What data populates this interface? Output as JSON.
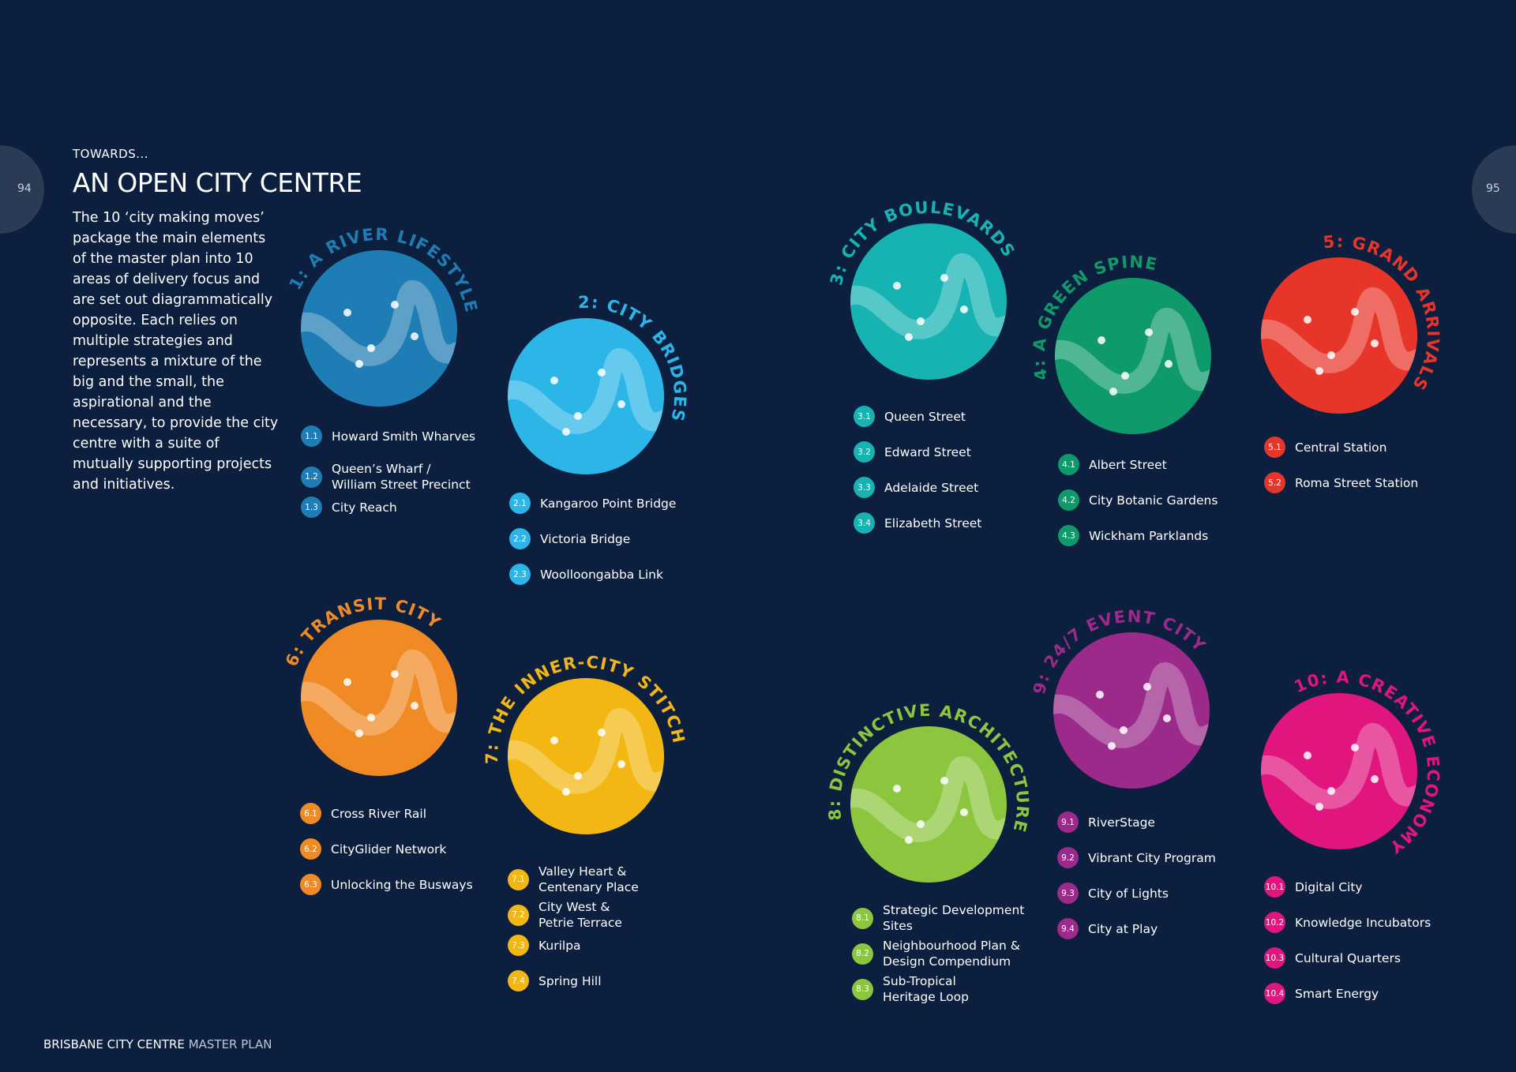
{
  "page_numbers": {
    "left": "94",
    "right": "95"
  },
  "header": {
    "kicker": "TOWARDS...",
    "title": "AN OPEN CITY CENTRE",
    "body": "The 10 ‘city making moves’ package the main elements of the master plan into 10 areas of delivery focus and are set out diagrammatically opposite. Each relies on multiple strategies and represents a mixture of the big and the small, the aspirational and the necessary, to provide the city centre with a suite of mutually supporting projects and initiatives."
  },
  "moves": [
    {
      "title": "1: A RIVER LIFESTYLE",
      "color": "#1f7db5",
      "items": [
        {
          "number": "1.1",
          "label": "Howard Smith Wharves"
        },
        {
          "number": "1.2",
          "label": "Queen’s Wharf /\nWilliam Street Precinct"
        },
        {
          "number": "1.3",
          "label": "City Reach"
        }
      ]
    },
    {
      "title": "2: CITY BRIDGES",
      "color": "#2cb6e8",
      "items": [
        {
          "number": "2.1",
          "label": "Kangaroo Point Bridge"
        },
        {
          "number": "2.2",
          "label": "Victoria Bridge"
        },
        {
          "number": "2.3",
          "label": "Woolloongabba Link"
        }
      ]
    },
    {
      "title": "3: CITY BOULEVARDS",
      "color": "#17b3b3",
      "items": [
        {
          "number": "3.1",
          "label": "Queen Street"
        },
        {
          "number": "3.2",
          "label": "Edward Street"
        },
        {
          "number": "3.3",
          "label": "Adelaide Street"
        },
        {
          "number": "3.4",
          "label": "Elizabeth Street"
        }
      ]
    },
    {
      "title": "4: A GREEN SPINE",
      "color": "#0f9a6b",
      "items": [
        {
          "number": "4.1",
          "label": "Albert Street"
        },
        {
          "number": "4.2",
          "label": "City Botanic Gardens"
        },
        {
          "number": "4.3",
          "label": "Wickham Parklands"
        }
      ]
    },
    {
      "title": "5: GRAND ARRIVALS",
      "color": "#e8352a",
      "items": [
        {
          "number": "5.1",
          "label": "Central Station"
        },
        {
          "number": "5.2",
          "label": "Roma Street Station"
        }
      ]
    },
    {
      "title": "6: TRANSIT CITY",
      "color": "#f08a24",
      "items": [
        {
          "number": "6.1",
          "label": "Cross River Rail"
        },
        {
          "number": "6.2",
          "label": "CityGlider Network"
        },
        {
          "number": "6.3",
          "label": "Unlocking the Busways"
        }
      ]
    },
    {
      "title": "7: THE INNER-CITY STITCH",
      "color": "#f2b713",
      "items": [
        {
          "number": "7.1",
          "label": "Valley Heart &\nCentenary Place"
        },
        {
          "number": "7.2",
          "label": "City West &\nPetrie Terrace"
        },
        {
          "number": "7.3",
          "label": "Kurilpa"
        },
        {
          "number": "7.4",
          "label": "Spring Hill"
        }
      ]
    },
    {
      "title": "8: DISTINCTIVE ARCHITECTURE",
      "color": "#8cc63f",
      "items": [
        {
          "number": "8.1",
          "label": "Strategic Development\nSites"
        },
        {
          "number": "8.2",
          "label": "Neighbourhood Plan &\nDesign Compendium"
        },
        {
          "number": "8.3",
          "label": "Sub-Tropical\nHeritage Loop"
        }
      ]
    },
    {
      "title": "9: 24/7 EVENT CITY",
      "color": "#9b2a8b",
      "items": [
        {
          "number": "9.1",
          "label": "RiverStage"
        },
        {
          "number": "9.2",
          "label": "Vibrant City Program"
        },
        {
          "number": "9.3",
          "label": "City of Lights"
        },
        {
          "number": "9.4",
          "label": "City at Play"
        }
      ]
    },
    {
      "title": "10: A CREATIVE ECONOMY",
      "color": "#e0157e",
      "items": [
        {
          "number": "10.1",
          "label": "Digital City"
        },
        {
          "number": "10.2",
          "label": "Knowledge Incubators"
        },
        {
          "number": "10.3",
          "label": "Cultural Quarters"
        },
        {
          "number": "10.4",
          "label": "Smart Energy"
        }
      ]
    }
  ],
  "footer": {
    "title": "BRISBANE CITY CENTRE",
    "subtitle": "MASTER PLAN"
  }
}
